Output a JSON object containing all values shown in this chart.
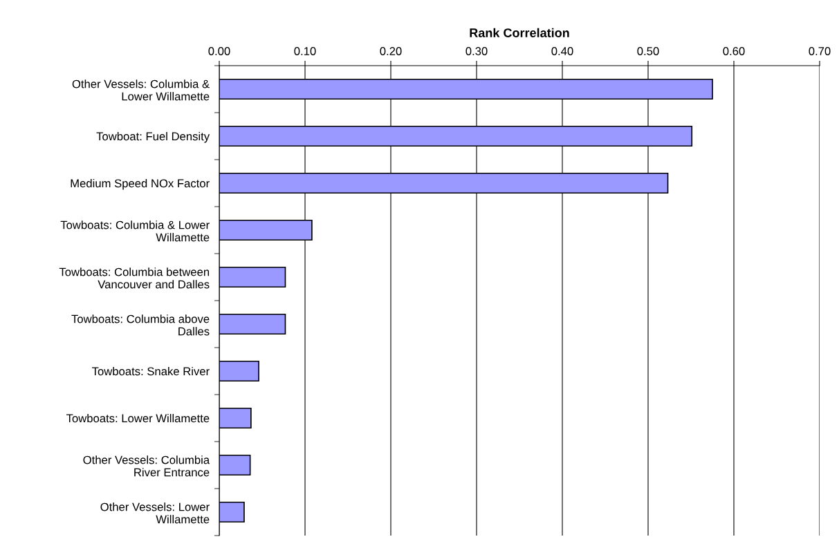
{
  "chart_data": {
    "type": "bar",
    "orientation": "horizontal",
    "xlabel": "Rank Correlation",
    "categories": [
      "Other Vessels: Columbia &\nLower Willamette",
      "Towboat: Fuel Density",
      "Medium Speed NOx Factor",
      "Towboats: Columbia & Lower\nWillamette",
      "Towboats: Columbia between\nVancouver and Dalles",
      "Towboats: Columbia above\nDalles",
      "Towboats: Snake River",
      "Towboats: Lower Willamette",
      "Other Vessels: Columbia\nRiver Entrance",
      "Other Vessels: Lower\nWillamette"
    ],
    "values": [
      0.575,
      0.551,
      0.523,
      0.108,
      0.077,
      0.077,
      0.046,
      0.037,
      0.036,
      0.029
    ],
    "color": "#9999ff",
    "xlim": [
      0,
      0.7
    ],
    "xticks": [
      {
        "value": 0,
        "label": "0.00"
      },
      {
        "value": 0.1,
        "label": "0.10"
      },
      {
        "value": 0.2,
        "label": "0.20"
      },
      {
        "value": 0.3,
        "label": "0.30"
      },
      {
        "value": 0.4,
        "label": "0.40"
      },
      {
        "value": 0.5,
        "label": "0.50"
      },
      {
        "value": 0.6,
        "label": "0.60"
      },
      {
        "value": 0.7,
        "label": "0.70"
      }
    ],
    "grid": "x"
  }
}
